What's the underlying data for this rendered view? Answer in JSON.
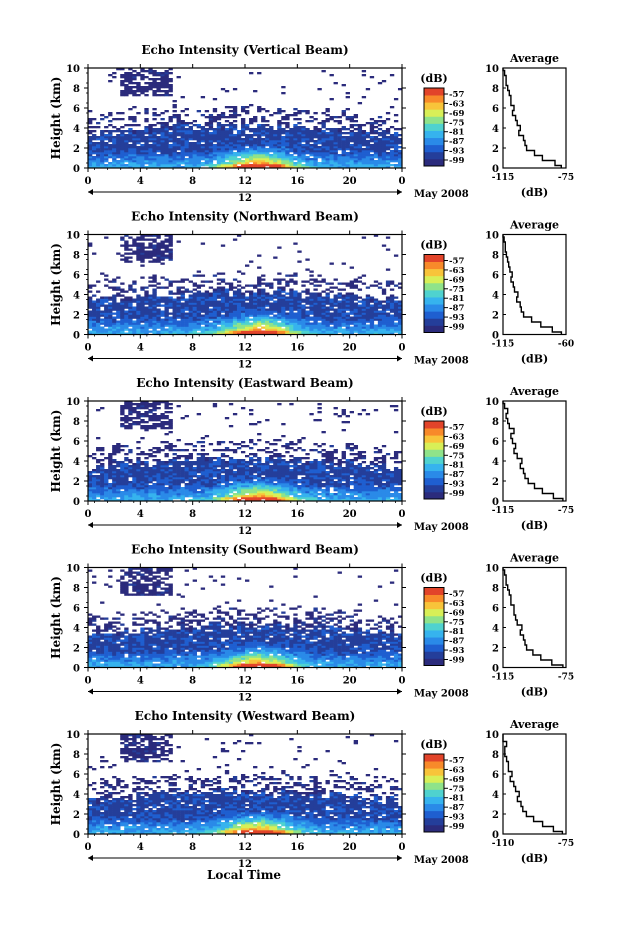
{
  "figure": {
    "xlabel_bottom": "Local Time",
    "date_label": "May 2008",
    "day_label": "12",
    "colorbar_unit": "(dB)",
    "avg_title": "Average",
    "avg_xlabel": "(dB)"
  },
  "colors": {
    "scale": [
      "#2b2b7c",
      "#243e9a",
      "#1f5fd0",
      "#2a8ae8",
      "#36b3ee",
      "#4fd2cf",
      "#8fe38a",
      "#d8ef57",
      "#f8c43a",
      "#f88a2a",
      "#e2442a"
    ]
  },
  "chart_data": [
    {
      "type": "heatmap",
      "title": "Echo Intensity (Vertical Beam)",
      "ylabel": "Height (km)",
      "x_ticks": [
        "0",
        "4",
        "8",
        "12",
        "16",
        "20",
        "0"
      ],
      "y_ticks": [
        "0",
        "2",
        "4",
        "6",
        "8",
        "10"
      ],
      "xlim": [
        0,
        24
      ],
      "ylim": [
        0,
        10
      ],
      "colorbar_ticks": [
        "-57",
        "-63",
        "-69",
        "-75",
        "-81",
        "-87",
        "-93",
        "-99"
      ],
      "average": {
        "x_ticks": [
          "-115",
          "-75"
        ],
        "xlim": [
          -115,
          -75
        ],
        "heights": [
          0,
          0.5,
          1,
          1.5,
          2,
          2.5,
          3,
          3.5,
          4,
          4.5,
          5,
          5.5,
          6,
          6.5,
          7,
          7.5,
          8,
          8.5,
          9,
          9.5,
          10
        ],
        "values": [
          -78,
          -82,
          -90,
          -95,
          -100,
          -101,
          -102,
          -105,
          -104,
          -106,
          -107,
          -109,
          -108,
          -110,
          -110,
          -111,
          -112,
          -113,
          -113,
          -114,
          -115
        ]
      }
    },
    {
      "type": "heatmap",
      "title": "Echo Intensity (Northward Beam)",
      "ylabel": "Height (km)",
      "x_ticks": [
        "0",
        "4",
        "8",
        "12",
        "16",
        "20",
        "0"
      ],
      "y_ticks": [
        "0",
        "2",
        "4",
        "6",
        "8",
        "10"
      ],
      "xlim": [
        0,
        24
      ],
      "ylim": [
        0,
        10
      ],
      "colorbar_ticks": [
        "-57",
        "-63",
        "-69",
        "-75",
        "-81",
        "-87",
        "-93",
        "-99"
      ],
      "average": {
        "x_ticks": [
          "-115",
          "-60"
        ],
        "xlim": [
          -115,
          -60
        ],
        "heights": [
          0,
          0.5,
          1,
          1.5,
          2,
          2.5,
          3,
          3.5,
          4,
          4.5,
          5,
          5.5,
          6,
          6.5,
          7,
          7.5,
          8,
          8.5,
          9,
          9.5,
          10
        ],
        "values": [
          -64,
          -72,
          -82,
          -90,
          -97,
          -99,
          -100,
          -103,
          -102,
          -105,
          -106,
          -108,
          -107,
          -109,
          -110,
          -111,
          -112,
          -113,
          -113,
          -114,
          -115
        ]
      }
    },
    {
      "type": "heatmap",
      "title": "Echo Intensity (Eastward Beam)",
      "ylabel": "Height (km)",
      "x_ticks": [
        "0",
        "4",
        "8",
        "12",
        "16",
        "20",
        "0"
      ],
      "y_ticks": [
        "0",
        "2",
        "4",
        "6",
        "8",
        "10"
      ],
      "xlim": [
        0,
        24
      ],
      "ylim": [
        0,
        10
      ],
      "colorbar_ticks": [
        "-57",
        "-63",
        "-69",
        "-75",
        "-81",
        "-87",
        "-93",
        "-99"
      ],
      "average": {
        "x_ticks": [
          "-115",
          "-75"
        ],
        "xlim": [
          -115,
          -75
        ],
        "heights": [
          0,
          0.5,
          1,
          1.5,
          2,
          2.5,
          3,
          3.5,
          4,
          4.5,
          5,
          5.5,
          6,
          6.5,
          7,
          7.5,
          8,
          8.5,
          9,
          9.5,
          10
        ],
        "values": [
          -77,
          -83,
          -90,
          -95,
          -99,
          -101,
          -102,
          -104,
          -103,
          -106,
          -108,
          -107,
          -109,
          -110,
          -108,
          -111,
          -112,
          -113,
          -112,
          -114,
          -115
        ]
      }
    },
    {
      "type": "heatmap",
      "title": "Echo Intensity (Southward Beam)",
      "ylabel": "Height (km)",
      "x_ticks": [
        "0",
        "4",
        "8",
        "12",
        "16",
        "20",
        "0"
      ],
      "y_ticks": [
        "0",
        "2",
        "4",
        "6",
        "8",
        "10"
      ],
      "xlim": [
        0,
        24
      ],
      "ylim": [
        0,
        10
      ],
      "colorbar_ticks": [
        "-57",
        "-63",
        "-69",
        "-75",
        "-81",
        "-87",
        "-93",
        "-99"
      ],
      "average": {
        "x_ticks": [
          "-115",
          "-75"
        ],
        "xlim": [
          -115,
          -75
        ],
        "heights": [
          0,
          0.5,
          1,
          1.5,
          2,
          2.5,
          3,
          3.5,
          4,
          4.5,
          5,
          5.5,
          6,
          6.5,
          7,
          7.5,
          8,
          8.5,
          9,
          9.5,
          10
        ],
        "values": [
          -77,
          -84,
          -91,
          -96,
          -100,
          -101,
          -102,
          -104,
          -103,
          -106,
          -107,
          -108,
          -108,
          -110,
          -110,
          -111,
          -112,
          -113,
          -113,
          -114,
          -115
        ]
      }
    },
    {
      "type": "heatmap",
      "title": "Echo Intensity (Westward Beam)",
      "ylabel": "Height (km)",
      "x_ticks": [
        "0",
        "4",
        "8",
        "12",
        "16",
        "20",
        "0"
      ],
      "y_ticks": [
        "0",
        "2",
        "4",
        "6",
        "8",
        "10"
      ],
      "xlim": [
        0,
        24
      ],
      "ylim": [
        0,
        10
      ],
      "colorbar_ticks": [
        "-57",
        "-63",
        "-69",
        "-75",
        "-81",
        "-87",
        "-93",
        "-99"
      ],
      "average": {
        "x_ticks": [
          "-110",
          "-75"
        ],
        "xlim": [
          -110,
          -75
        ],
        "heights": [
          0,
          0.5,
          1,
          1.5,
          2,
          2.5,
          3,
          3.5,
          4,
          4.5,
          5,
          5.5,
          6,
          6.5,
          7,
          7.5,
          8,
          8.5,
          9,
          9.5,
          10
        ],
        "values": [
          -77,
          -82,
          -88,
          -93,
          -97,
          -99,
          -100,
          -102,
          -101,
          -103,
          -104,
          -106,
          -105,
          -107,
          -107,
          -108,
          -109,
          -109,
          -108,
          -110,
          -110
        ]
      }
    }
  ]
}
